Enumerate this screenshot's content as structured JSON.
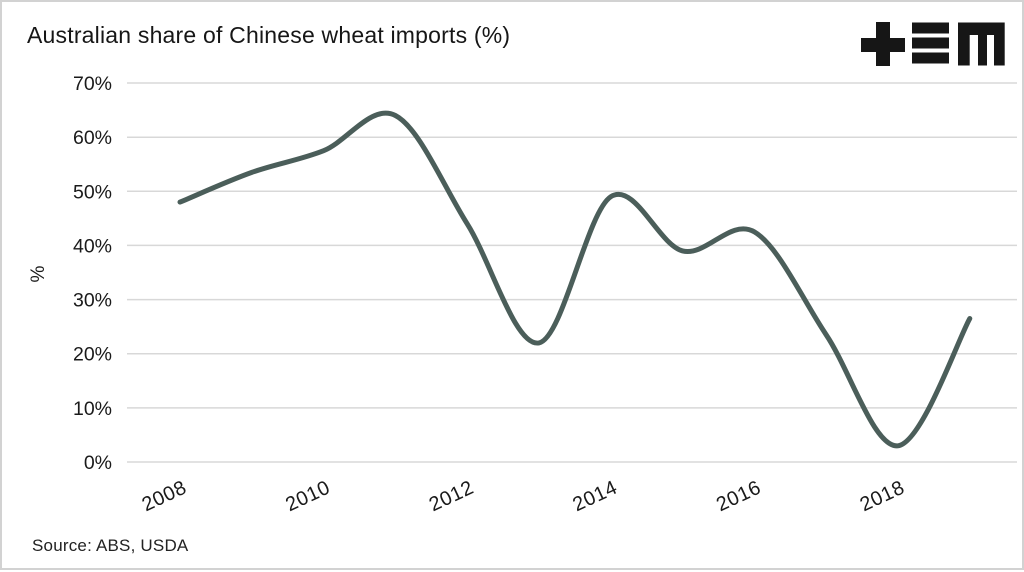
{
  "header": {
    "title": "Australian share of Chinese wheat imports (%)",
    "logo_name": "tem"
  },
  "chart_data": {
    "type": "line",
    "title": "Australian share of Chinese wheat imports (%)",
    "x": [
      2008,
      2009,
      2010,
      2011,
      2012,
      2013,
      2014,
      2015,
      2016,
      2017,
      2018,
      2019
    ],
    "values": [
      48,
      53.5,
      57.5,
      64,
      44,
      22,
      49,
      39,
      42.5,
      23.5,
      3,
      26.5
    ],
    "unit": "%",
    "xlabel": "",
    "ylabel": "%",
    "ylim": [
      0,
      70
    ],
    "yticks": [
      0,
      10,
      20,
      30,
      40,
      50,
      60,
      70
    ],
    "ytick_suffix": "%",
    "xticks": [
      2008,
      2010,
      2012,
      2014,
      2016,
      2018
    ],
    "grid": "horizontal",
    "legend_position": "none",
    "curve": "smooth",
    "colors": {
      "line": "#4b5e5a",
      "grid": "#d8d8d8",
      "text": "#1a1a1a",
      "background": "#ffffff"
    }
  },
  "footer": {
    "source": "Source: ABS, USDA"
  }
}
